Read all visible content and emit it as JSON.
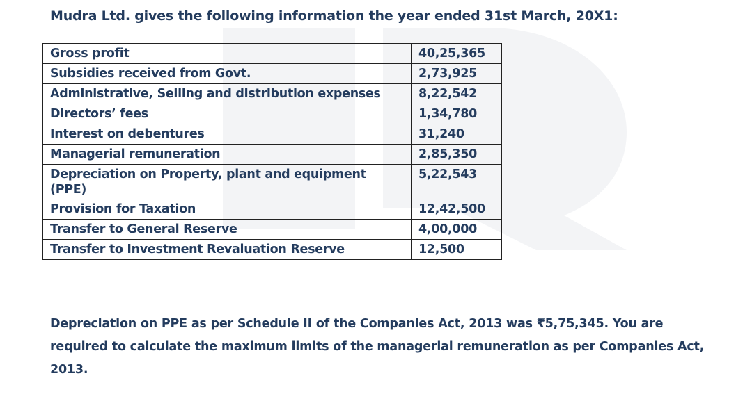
{
  "heading": "Mudra Ltd. gives the following information the year ended 31st March, 20X1:",
  "table": {
    "rows": [
      {
        "label": "Gross profit",
        "value": "40,25,365"
      },
      {
        "label": "Subsidies received from Govt.",
        "value": "2,73,925"
      },
      {
        "label": "Administrative, Selling and distribution expenses",
        "value": "8,22,542"
      },
      {
        "label": "Directors’ fees",
        "value": "1,34,780"
      },
      {
        "label": "Interest on debentures",
        "value": "31,240"
      },
      {
        "label": "Managerial remuneration",
        "value": "2,85,350"
      },
      {
        "label": "Depreciation on Property, plant and equipment (PPE)",
        "value": "5,22,543"
      },
      {
        "label": "Provision for Taxation",
        "value": "12,42,500"
      },
      {
        "label": "Transfer to General Reserve",
        "value": "4,00,000"
      },
      {
        "label": "Transfer to Investment Revaluation Reserve",
        "value": "12,500"
      }
    ]
  },
  "question": "Depreciation on PPE as per Schedule II of the Companies Act, 2013 was ₹5,75,345. You are required to calculate the maximum limits of the managerial remuneration as per Companies Act, 2013."
}
